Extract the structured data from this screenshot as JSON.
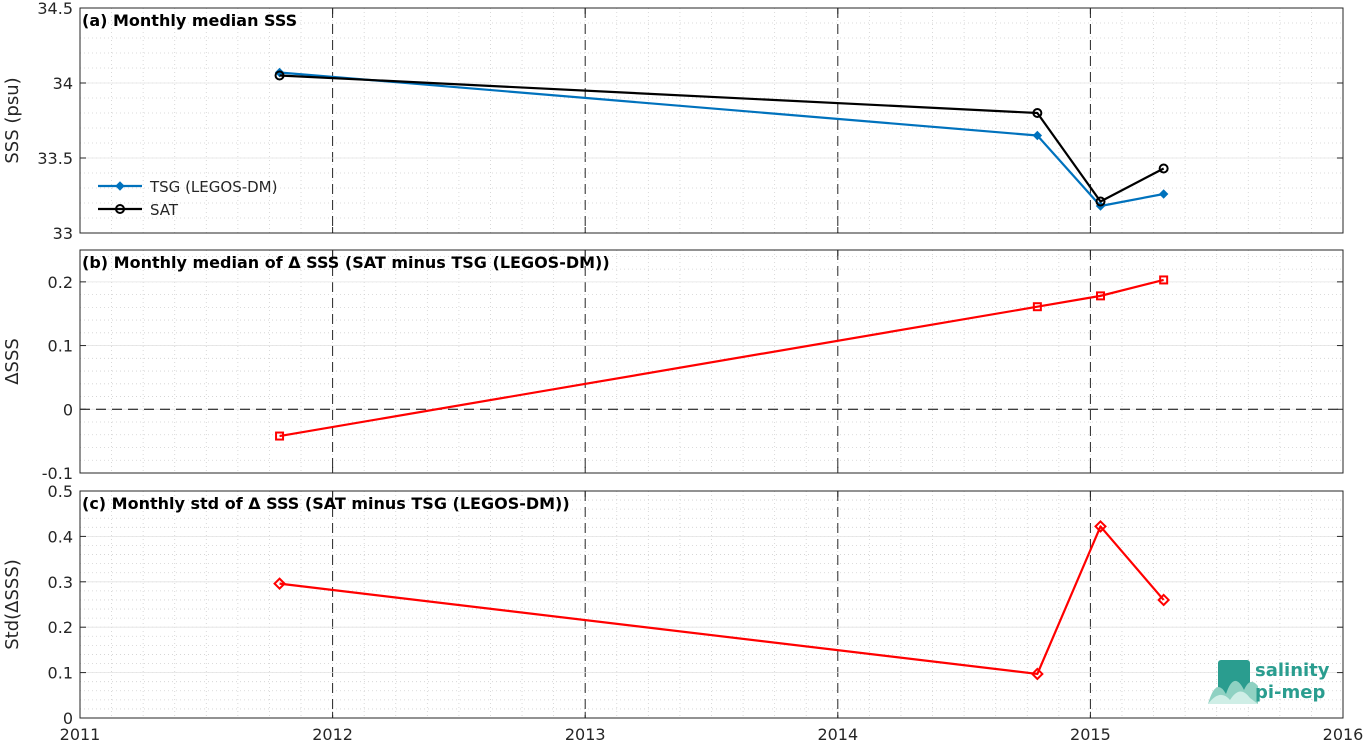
{
  "logo": {
    "line1": "salinity",
    "line2": "pi-mep"
  },
  "chart_data": [
    {
      "type": "line",
      "title": "(a) Monthly median SSS",
      "ylabel": "SSS (psu)",
      "xlim": [
        2011,
        2016
      ],
      "ylim": [
        33,
        34.5
      ],
      "xticks": [
        2011,
        2012,
        2013,
        2014,
        2015,
        2016
      ],
      "xtick_labels": [
        "",
        "",
        "",
        "",
        "",
        ""
      ],
      "yticks": [
        33,
        33.5,
        34,
        34.5
      ],
      "ytick_labels": [
        "33",
        "33.5",
        "34",
        "34.5"
      ],
      "grid": true,
      "legend": "center-left",
      "series": [
        {
          "name": "TSG (LEGOS-DM)",
          "color": "#0072bd",
          "marker": "diamond",
          "x": [
            2011.79,
            2014.79,
            2015.04,
            2015.29
          ],
          "y": [
            34.07,
            33.65,
            33.18,
            33.26
          ]
        },
        {
          "name": "SAT",
          "color": "#000000",
          "marker": "circle",
          "x": [
            2011.79,
            2014.79,
            2015.04,
            2015.29
          ],
          "y": [
            34.05,
            33.8,
            33.21,
            33.43
          ]
        }
      ]
    },
    {
      "type": "line",
      "title": "(b) Monthly median of Δ SSS (SAT minus TSG (LEGOS-DM))",
      "ylabel": "ΔSSS",
      "xlim": [
        2011,
        2016
      ],
      "ylim": [
        -0.1,
        0.25
      ],
      "xticks": [
        2011,
        2012,
        2013,
        2014,
        2015,
        2016
      ],
      "xtick_labels": [
        "",
        "",
        "",
        "",
        "",
        ""
      ],
      "yticks": [
        -0.1,
        0,
        0.1,
        0.2
      ],
      "ytick_labels": [
        "-0.1",
        "0",
        "0.1",
        "0.2"
      ],
      "grid": true,
      "zero_line": true,
      "series": [
        {
          "color": "#ff0000",
          "marker": "square",
          "x": [
            2011.79,
            2014.79,
            2015.04,
            2015.29
          ],
          "y": [
            -0.042,
            0.161,
            0.178,
            0.203
          ]
        }
      ]
    },
    {
      "type": "line",
      "title": "(c) Monthly std of Δ SSS (SAT minus TSG (LEGOS-DM))",
      "ylabel": "Std(ΔSSS)",
      "xlim": [
        2011,
        2016
      ],
      "ylim": [
        0,
        0.5
      ],
      "xticks": [
        2011,
        2012,
        2013,
        2014,
        2015,
        2016
      ],
      "xtick_labels": [
        "2011",
        "2012",
        "2013",
        "2014",
        "2015",
        "2016"
      ],
      "yticks": [
        0,
        0.1,
        0.2,
        0.3,
        0.4,
        0.5
      ],
      "ytick_labels": [
        "0",
        "0.1",
        "0.2",
        "0.3",
        "0.4",
        "0.5"
      ],
      "grid": true,
      "series": [
        {
          "color": "#ff0000",
          "marker": "diamond",
          "x": [
            2011.79,
            2014.79,
            2015.04,
            2015.29
          ],
          "y": [
            0.296,
            0.097,
            0.422,
            0.26
          ]
        }
      ]
    }
  ]
}
